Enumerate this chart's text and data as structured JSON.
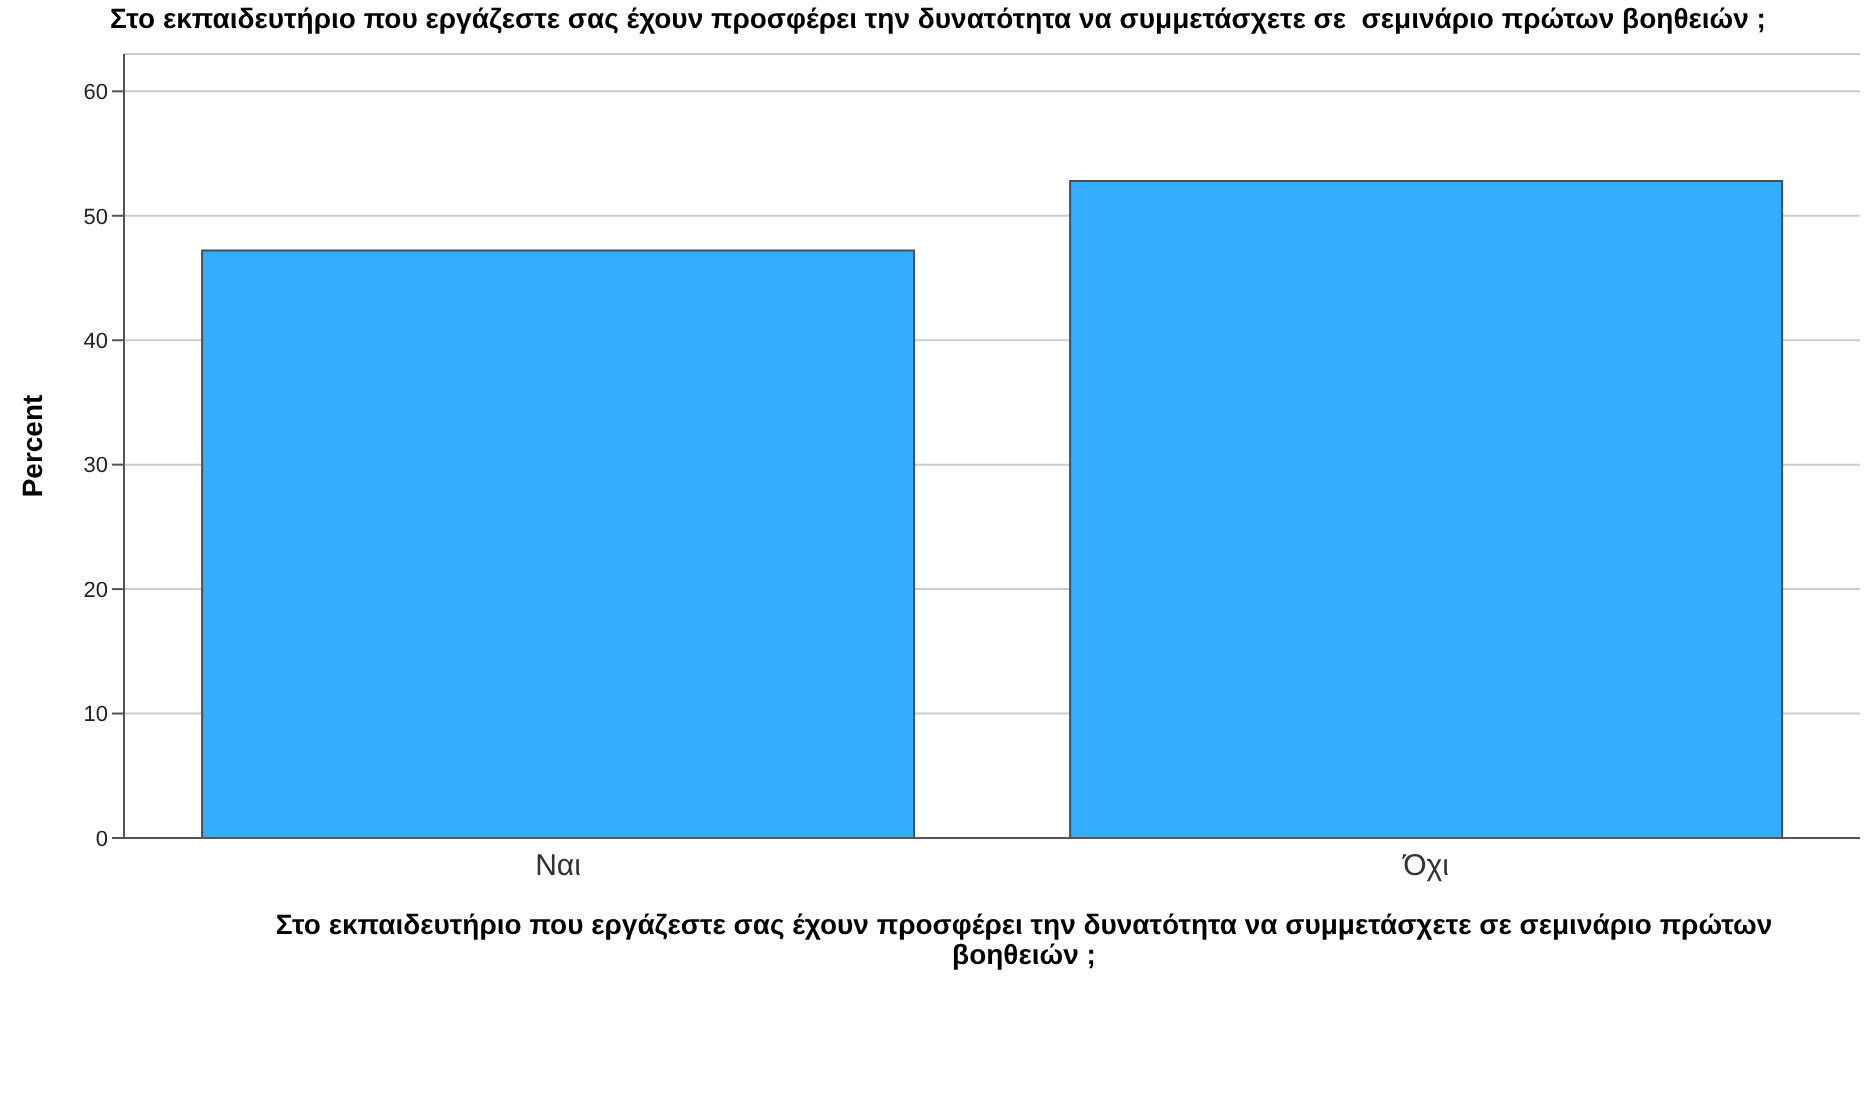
{
  "chart_data": {
    "type": "bar",
    "title": "Στο εκπαιδευτήριο που εργάζεστε σας έχουν προσφέρει την δυνατότητα να συμμετάσχετε σε  σεμινάριο πρώτων βοηθειών ;",
    "xlabel": "Στο εκπαιδευτήριο που εργάζεστε σας έχουν προσφέρει την δυνατότητα να συμμετάσχετε σε σεμινάριο πρώτων βοηθειών ;",
    "ylabel": "Percent",
    "categories": [
      "Ναι",
      "Όχι"
    ],
    "values": [
      47.2,
      52.8
    ],
    "color": "#33adff",
    "ylim": [
      0,
      63
    ],
    "yticks": [
      0,
      10,
      20,
      30,
      40,
      50,
      60
    ],
    "grid": "y",
    "legend": false
  }
}
